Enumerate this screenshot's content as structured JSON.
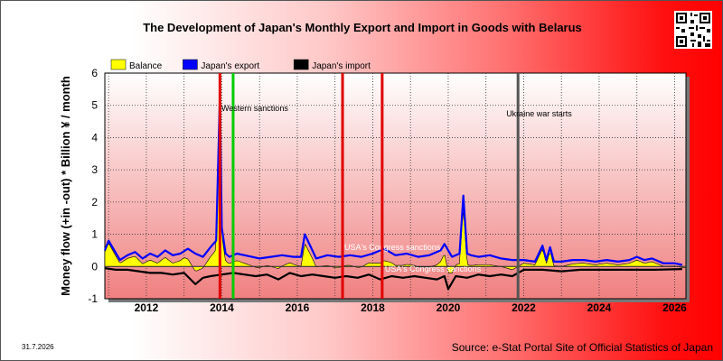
{
  "title": "The Development of Japan's Monthly Export and Import in Goods with Belarus",
  "source": "Source: e-Stat Portal Site of Official Statistics of Japan",
  "date": "31.7.2026",
  "chart_data": {
    "type": "area",
    "title": "The Development of Japan's Monthly Export and Import in Goods with Belarus",
    "xlabel": "",
    "ylabel": "Money flow (+in -out) * Billion ¥ / month",
    "xlim": [
      2010.9,
      2026.3
    ],
    "ylim": [
      -1,
      6
    ],
    "x_ticks": [
      2012,
      2014,
      2016,
      2018,
      2020,
      2022,
      2024,
      2026
    ],
    "y_ticks": [
      -1,
      0,
      1,
      2,
      3,
      4,
      5,
      6
    ],
    "grid": true,
    "legend_position": "top-left",
    "legend": [
      {
        "name": "Balance",
        "color": "#ffff00"
      },
      {
        "name": "Japan's export",
        "color": "#0000ff"
      },
      {
        "name": "Japan's import",
        "color": "#000000"
      }
    ],
    "events": [
      {
        "x": 2013.95,
        "label": "",
        "color": "#e00000"
      },
      {
        "x": 2014.3,
        "label": "Western sanctions",
        "color": "#00cc00"
      },
      {
        "x": 2017.2,
        "label": "USA's Congress sanctions",
        "color": "#e00000"
      },
      {
        "x": 2018.25,
        "label": "USA's Congress sanctions",
        "color": "#e00000"
      },
      {
        "x": 2021.85,
        "label": "Ukraine war starts",
        "color": "#555555"
      }
    ],
    "series": [
      {
        "name": "Japan's export",
        "color": "#0000ff",
        "x": [
          2010.9,
          2011.0,
          2011.1,
          2011.3,
          2011.5,
          2011.7,
          2011.9,
          2012.1,
          2012.3,
          2012.5,
          2012.7,
          2012.9,
          2013.1,
          2013.3,
          2013.5,
          2013.7,
          2013.85,
          2013.95,
          2014.0,
          2014.1,
          2014.2,
          2014.4,
          2014.6,
          2014.8,
          2015.0,
          2015.3,
          2015.6,
          2015.9,
          2016.1,
          2016.2,
          2016.5,
          2016.8,
          2017.1,
          2017.4,
          2017.7,
          2018.0,
          2018.3,
          2018.6,
          2018.9,
          2019.2,
          2019.5,
          2019.8,
          2019.9,
          2020.1,
          2020.3,
          2020.4,
          2020.5,
          2020.6,
          2020.8,
          2021.1,
          2021.4,
          2021.7,
          2022.0,
          2022.3,
          2022.5,
          2022.6,
          2022.7,
          2022.8,
          2023.0,
          2023.3,
          2023.6,
          2023.9,
          2024.2,
          2024.5,
          2024.8,
          2025.0,
          2025.2,
          2025.4,
          2025.7,
          2026.0,
          2026.2
        ],
        "y": [
          0.5,
          0.8,
          0.6,
          0.2,
          0.35,
          0.45,
          0.25,
          0.4,
          0.3,
          0.5,
          0.35,
          0.4,
          0.55,
          0.4,
          0.3,
          0.6,
          0.8,
          5.3,
          1.2,
          0.4,
          0.3,
          0.4,
          0.35,
          0.3,
          0.25,
          0.3,
          0.35,
          0.3,
          0.3,
          1.0,
          0.25,
          0.35,
          0.3,
          0.35,
          0.3,
          0.4,
          0.55,
          0.35,
          0.4,
          0.3,
          0.35,
          0.5,
          0.7,
          0.3,
          0.4,
          2.2,
          0.4,
          0.35,
          0.3,
          0.35,
          0.25,
          0.2,
          0.2,
          0.15,
          0.65,
          0.2,
          0.6,
          0.15,
          0.15,
          0.2,
          0.2,
          0.15,
          0.2,
          0.15,
          0.2,
          0.3,
          0.2,
          0.25,
          0.1,
          0.1,
          0.05
        ]
      },
      {
        "name": "Japan's import",
        "color": "#000000",
        "x": [
          2010.9,
          2011.2,
          2011.5,
          2011.8,
          2012.1,
          2012.4,
          2012.7,
          2013.0,
          2013.3,
          2013.5,
          2013.7,
          2014.0,
          2014.3,
          2014.6,
          2014.9,
          2015.2,
          2015.5,
          2015.8,
          2016.1,
          2016.4,
          2016.7,
          2017.0,
          2017.3,
          2017.6,
          2017.9,
          2018.2,
          2018.5,
          2018.8,
          2019.1,
          2019.4,
          2019.7,
          2019.9,
          2020.0,
          2020.2,
          2020.5,
          2020.8,
          2021.1,
          2021.4,
          2021.7,
          2022.0,
          2022.5,
          2023.0,
          2023.5,
          2024.0,
          2024.5,
          2025.0,
          2025.5,
          2026.2
        ],
        "y": [
          -0.05,
          -0.1,
          -0.1,
          -0.15,
          -0.2,
          -0.2,
          -0.25,
          -0.2,
          -0.55,
          -0.35,
          -0.3,
          -0.25,
          -0.2,
          -0.25,
          -0.3,
          -0.25,
          -0.4,
          -0.2,
          -0.3,
          -0.25,
          -0.3,
          -0.35,
          -0.3,
          -0.35,
          -0.25,
          -0.4,
          -0.3,
          -0.35,
          -0.3,
          -0.35,
          -0.4,
          -0.3,
          -0.7,
          -0.3,
          -0.35,
          -0.25,
          -0.3,
          -0.25,
          -0.3,
          -0.1,
          -0.1,
          -0.15,
          -0.1,
          -0.1,
          -0.1,
          -0.1,
          -0.1,
          -0.08
        ]
      }
    ]
  }
}
